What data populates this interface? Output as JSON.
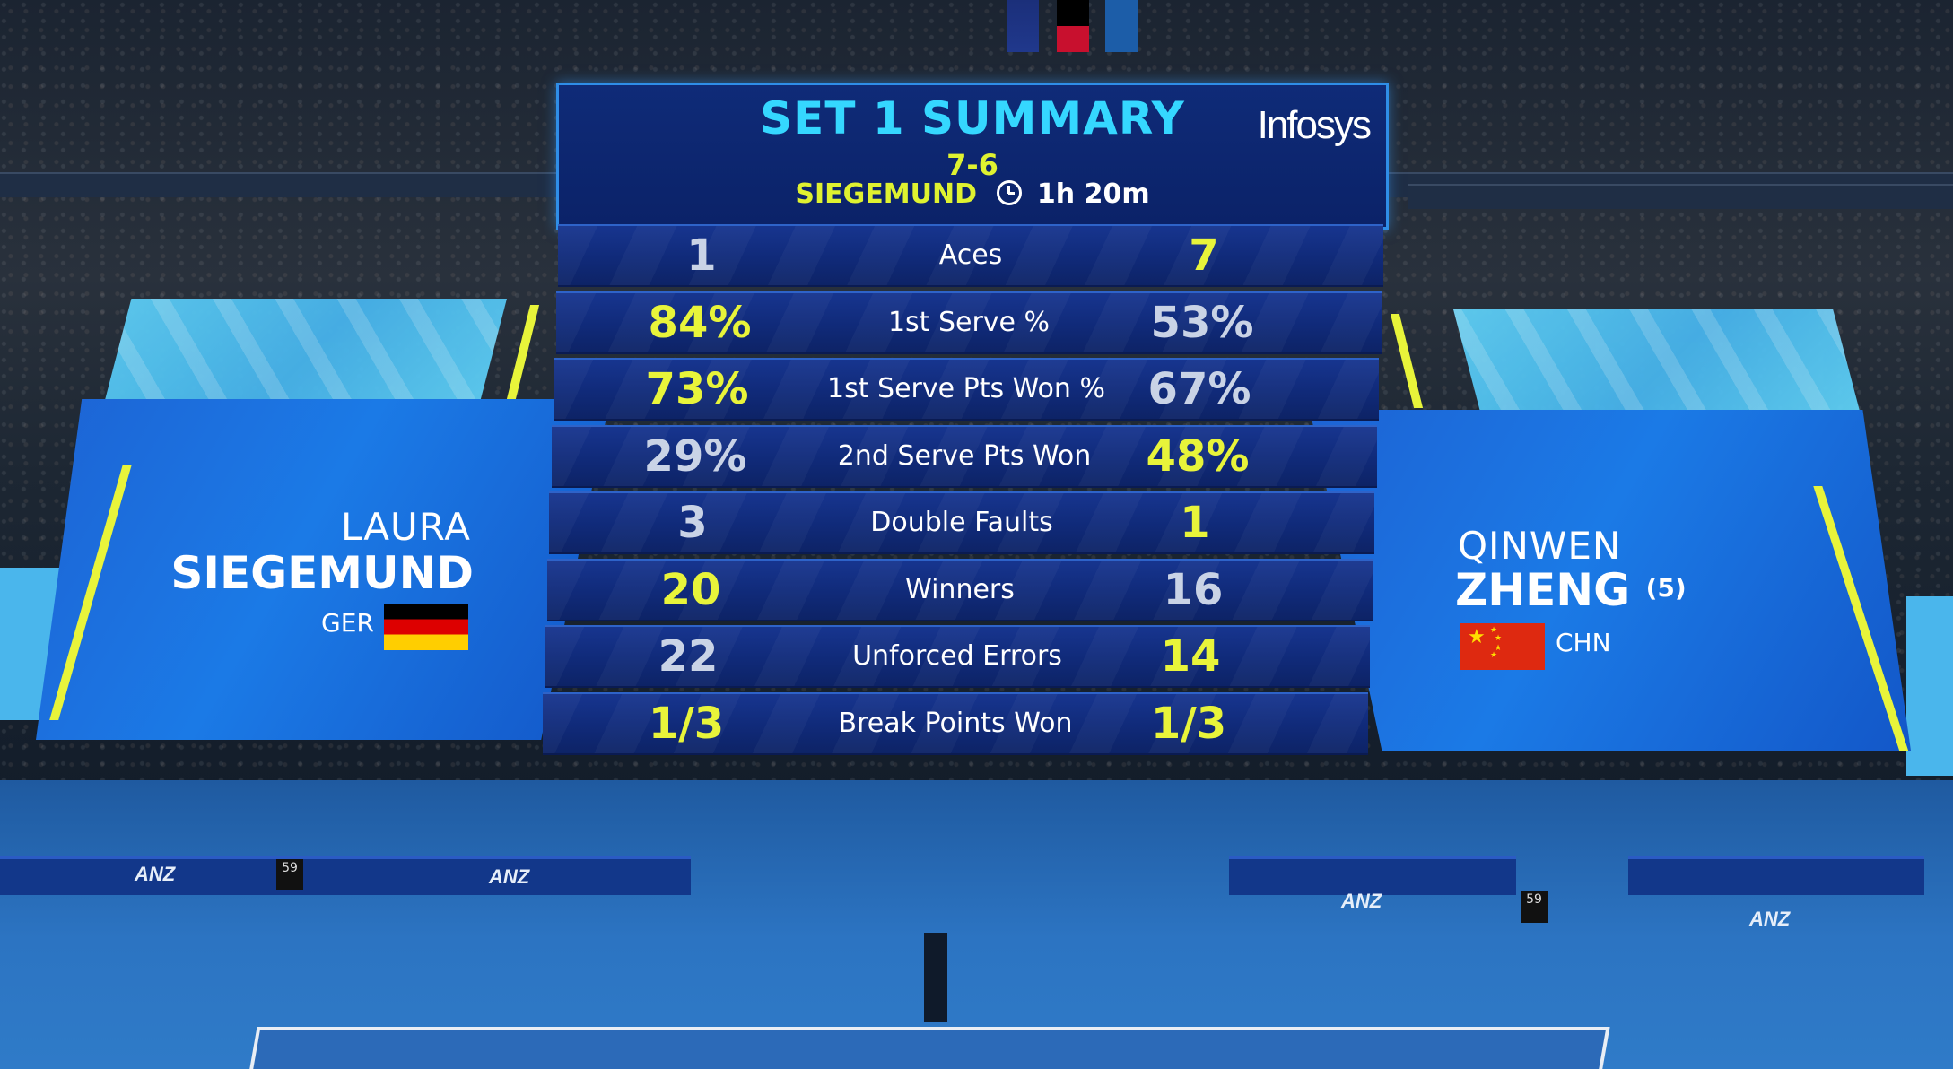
{
  "header": {
    "title": "SET 1 SUMMARY",
    "sponsor": "Infosys",
    "set_score": "7-6",
    "set_winner": "SIEGEMUND",
    "duration": "1h 20m"
  },
  "players": {
    "left": {
      "first_name": "LAURA",
      "last_name": "SIEGEMUND",
      "country": "GER",
      "seed": ""
    },
    "right": {
      "first_name": "QINWEN",
      "last_name": "ZHENG",
      "country": "CHN",
      "seed": "(5)"
    }
  },
  "stats": [
    {
      "label": "Aces",
      "left": "1",
      "right": "7",
      "leader": "right"
    },
    {
      "label": "1st Serve %",
      "left": "84%",
      "right": "53%",
      "leader": "left"
    },
    {
      "label": "1st Serve Pts Won %",
      "left": "73%",
      "right": "67%",
      "leader": "left"
    },
    {
      "label": "2nd Serve Pts Won",
      "left": "29%",
      "right": "48%",
      "leader": "right"
    },
    {
      "label": "Double Faults",
      "left": "3",
      "right": "1",
      "leader": "right"
    },
    {
      "label": "Winners",
      "left": "20",
      "right": "16",
      "leader": "left"
    },
    {
      "label": "Unforced Errors",
      "left": "22",
      "right": "14",
      "leader": "right"
    },
    {
      "label": "Break Points Won",
      "left": "1/3",
      "right": "1/3",
      "leader": "both"
    }
  ],
  "venue": {
    "ad_text": "ANZ",
    "clock_left": "59",
    "clock_right": "59"
  },
  "colors": {
    "highlight": "#e8f43a",
    "title": "#35d7ff",
    "panel": "#102a79",
    "court": "#2c74c2"
  },
  "icons": [
    "clock-icon",
    "flag-germany-icon",
    "flag-china-icon"
  ]
}
